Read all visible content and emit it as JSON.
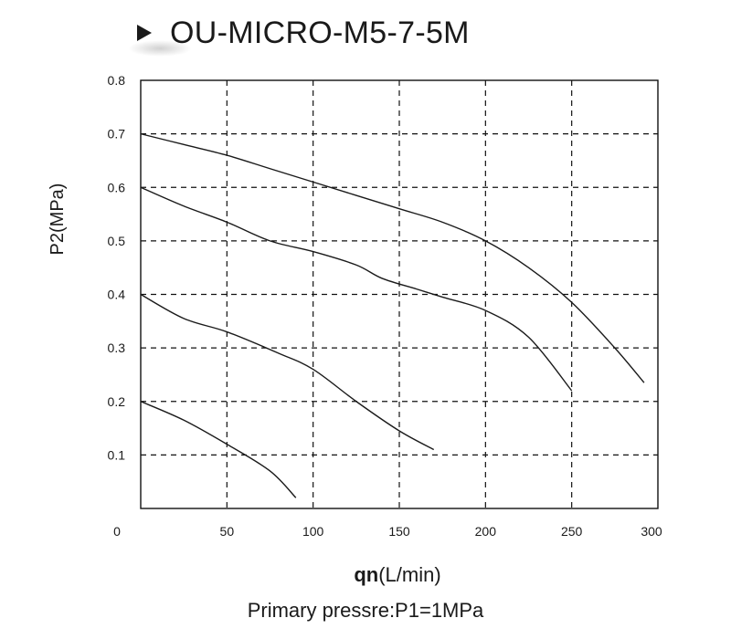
{
  "title": "OU-MICRO-M5-7-5M",
  "footnote": "Primary pressre:P1=1MPa",
  "chart_data": {
    "type": "line",
    "title": "OU-MICRO-M5-7-5M",
    "xlabel_bold": "qn",
    "xlabel_unit": "(L/min)",
    "ylabel": "P2(MPa)",
    "xlim": [
      0,
      300
    ],
    "ylim": [
      0,
      0.8
    ],
    "x_ticks": [
      "0",
      "50",
      "100",
      "150",
      "200",
      "250",
      "300"
    ],
    "y_ticks": [
      "0.1",
      "0.2",
      "0.3",
      "0.4",
      "0.5",
      "0.6",
      "0.7",
      "0.8"
    ],
    "grid": true,
    "grid_style": "dashed",
    "series": [
      {
        "x": [
          0,
          25,
          50,
          75,
          90
        ],
        "y": [
          0.2,
          0.165,
          0.12,
          0.07,
          0.02
        ]
      },
      {
        "x": [
          0,
          25,
          50,
          80,
          100,
          125,
          150,
          170
        ],
        "y": [
          0.4,
          0.355,
          0.33,
          0.29,
          0.26,
          0.2,
          0.145,
          0.11
        ]
      },
      {
        "x": [
          0,
          25,
          50,
          75,
          100,
          125,
          140,
          160,
          175,
          200,
          225,
          250
        ],
        "y": [
          0.6,
          0.565,
          0.535,
          0.5,
          0.48,
          0.455,
          0.43,
          0.41,
          0.395,
          0.37,
          0.32,
          0.22
        ]
      },
      {
        "x": [
          0,
          25,
          50,
          75,
          100,
          125,
          150,
          175,
          200,
          225,
          250,
          275,
          292
        ],
        "y": [
          0.7,
          0.68,
          0.66,
          0.635,
          0.61,
          0.585,
          0.56,
          0.535,
          0.5,
          0.45,
          0.385,
          0.3,
          0.235
        ]
      }
    ]
  }
}
